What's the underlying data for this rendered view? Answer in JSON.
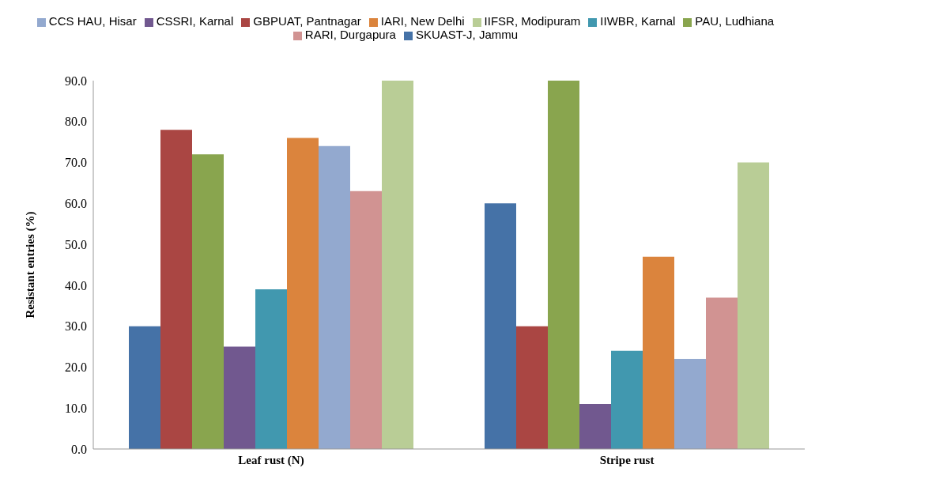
{
  "chart_data": {
    "type": "bar",
    "ylabel": "Resistant entries (%)",
    "categories": [
      "Leaf rust (N)",
      "Stripe rust"
    ],
    "series": [
      {
        "name": "SKUAST-J, Jammu",
        "color": "#4572a7",
        "values": [
          30,
          60
        ]
      },
      {
        "name": "GBPUAT, Pantnagar",
        "color": "#aa4643",
        "values": [
          78,
          30
        ]
      },
      {
        "name": "PAU, Ludhiana",
        "color": "#89a54e",
        "values": [
          72,
          90
        ]
      },
      {
        "name": "CSSRI, Karnal",
        "color": "#71588f",
        "values": [
          25,
          11
        ]
      },
      {
        "name": "IIWBR, Karnal",
        "color": "#4198af",
        "values": [
          39,
          24
        ]
      },
      {
        "name": "IARI, New Delhi",
        "color": "#db843d",
        "values": [
          76,
          47
        ]
      },
      {
        "name": "CCS HAU, Hisar",
        "color": "#93a9cf",
        "values": [
          74,
          22
        ]
      },
      {
        "name": "RARI, Durgapura",
        "color": "#d19392",
        "values": [
          63,
          37
        ]
      },
      {
        "name": "IIFSR, Modipuram",
        "color": "#b9cd96",
        "values": [
          90,
          70
        ]
      }
    ],
    "ylim": [
      0,
      90
    ],
    "yticks": [
      {
        "value": 0,
        "label": "0.0"
      },
      {
        "value": 10,
        "label": "10.0"
      },
      {
        "value": 20,
        "label": "20.0"
      },
      {
        "value": 30,
        "label": "30.0"
      },
      {
        "value": 40,
        "label": "40.0"
      },
      {
        "value": 50,
        "label": "50.0"
      },
      {
        "value": 60,
        "label": "60.0"
      },
      {
        "value": 70,
        "label": "70.0"
      },
      {
        "value": 80,
        "label": "80.0"
      },
      {
        "value": 90,
        "label": "90.0"
      }
    ],
    "grid": false,
    "legend": "top"
  }
}
